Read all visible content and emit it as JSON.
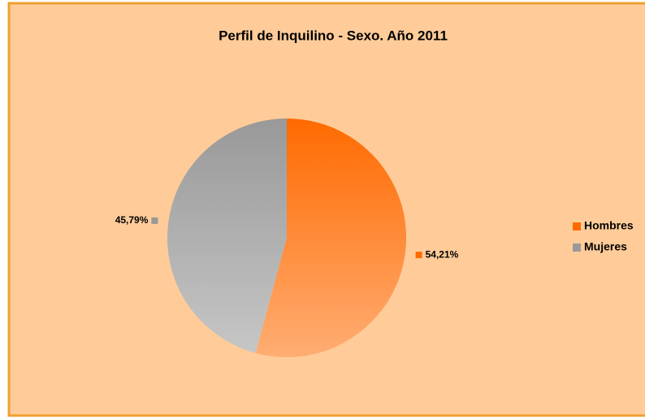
{
  "chart_data": {
    "type": "pie",
    "title": "Perfil de Inquilino - Sexo. Año 2011",
    "categories": [
      "Hombres",
      "Mujeres"
    ],
    "values": [
      54.21,
      45.79
    ],
    "value_labels": [
      "54,21%",
      "45,79%"
    ],
    "colors": [
      "#FF6A00",
      "#999999"
    ],
    "legend": "right"
  }
}
